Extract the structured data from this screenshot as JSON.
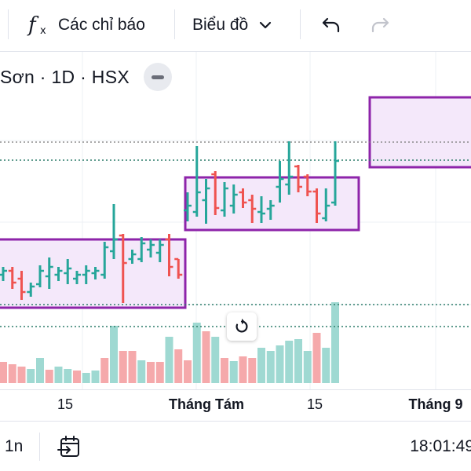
{
  "toolbar": {
    "indicators_label": "Các chỉ báo",
    "chart_type_label": "Biểu đồ"
  },
  "legend": {
    "symbol_text": "Sơn · 1D · HSX"
  },
  "colors": {
    "up": "#26a69a",
    "down": "#ef5350",
    "volume_up": "#9fd9d2",
    "volume_down": "#f5a9ab",
    "zone_border": "#8e24aa",
    "zone_fill": "#f4e8fa",
    "dotted_line": "#2e7d6b"
  },
  "time_axis": {
    "ticks": [
      {
        "label": "15",
        "bold": false
      },
      {
        "label": "Tháng Tám",
        "bold": true
      },
      {
        "label": "15",
        "bold": false
      },
      {
        "label": "Tháng 9",
        "bold": true
      }
    ]
  },
  "bottom_bar": {
    "range_label": "1n",
    "clock": "18:01:49"
  },
  "chart_data": {
    "type": "ohlc",
    "bars": [
      {
        "d": "up",
        "o": 350,
        "h": 340,
        "l": 358,
        "c": 345
      },
      {
        "d": "down",
        "o": 345,
        "h": 340,
        "l": 368,
        "c": 360
      },
      {
        "d": "down",
        "o": 355,
        "h": 345,
        "l": 382,
        "c": 372
      },
      {
        "d": "up",
        "o": 372,
        "h": 360,
        "l": 378,
        "c": 365
      },
      {
        "d": "up",
        "o": 362,
        "h": 338,
        "l": 366,
        "c": 345
      },
      {
        "d": "up",
        "o": 352,
        "h": 328,
        "l": 368,
        "c": 340
      },
      {
        "d": "up",
        "o": 350,
        "h": 340,
        "l": 358,
        "c": 345
      },
      {
        "d": "up",
        "o": 348,
        "h": 330,
        "l": 362,
        "c": 342
      },
      {
        "d": "up",
        "o": 355,
        "h": 345,
        "l": 362,
        "c": 350
      },
      {
        "d": "up",
        "o": 350,
        "h": 338,
        "l": 362,
        "c": 345
      },
      {
        "d": "up",
        "o": 348,
        "h": 340,
        "l": 356,
        "c": 345
      },
      {
        "d": "up",
        "o": 350,
        "h": 308,
        "l": 355,
        "c": 315
      },
      {
        "d": "up",
        "o": 320,
        "h": 260,
        "l": 330,
        "c": 305
      },
      {
        "d": "down",
        "o": 300,
        "h": 298,
        "l": 386,
        "c": 335
      },
      {
        "d": "up",
        "o": 330,
        "h": 318,
        "l": 336,
        "c": 324
      },
      {
        "d": "up",
        "o": 330,
        "h": 302,
        "l": 334,
        "c": 310
      },
      {
        "d": "up",
        "o": 318,
        "h": 305,
        "l": 328,
        "c": 312
      },
      {
        "d": "up",
        "o": 322,
        "h": 305,
        "l": 334,
        "c": 312
      },
      {
        "d": "down",
        "o": 305,
        "h": 298,
        "l": 352,
        "c": 340
      },
      {
        "d": "down",
        "o": 330,
        "h": 330,
        "l": 355,
        "c": 350
      },
      {
        "d": "up",
        "o": 268,
        "h": 245,
        "l": 282,
        "c": 262
      },
      {
        "d": "up",
        "o": 270,
        "h": 186,
        "l": 276,
        "c": 245
      },
      {
        "d": "up",
        "o": 255,
        "h": 228,
        "l": 285,
        "c": 240
      },
      {
        "d": "down",
        "o": 222,
        "h": 218,
        "l": 274,
        "c": 265
      },
      {
        "d": "up",
        "o": 268,
        "h": 232,
        "l": 276,
        "c": 240
      },
      {
        "d": "up",
        "o": 262,
        "h": 235,
        "l": 272,
        "c": 248
      },
      {
        "d": "down",
        "o": 245,
        "h": 240,
        "l": 265,
        "c": 258
      },
      {
        "d": "down",
        "o": 255,
        "h": 248,
        "l": 284,
        "c": 266
      },
      {
        "d": "up",
        "o": 270,
        "h": 250,
        "l": 284,
        "c": 272
      },
      {
        "d": "up",
        "o": 266,
        "h": 255,
        "l": 280,
        "c": 262
      },
      {
        "d": "up",
        "o": 238,
        "h": 205,
        "l": 258,
        "c": 228
      },
      {
        "d": "up",
        "o": 235,
        "h": 180,
        "l": 248,
        "c": 225
      },
      {
        "d": "down",
        "o": 212,
        "h": 210,
        "l": 245,
        "c": 238
      },
      {
        "d": "down",
        "o": 225,
        "h": 222,
        "l": 250,
        "c": 244
      },
      {
        "d": "down",
        "o": 244,
        "h": 240,
        "l": 284,
        "c": 272
      },
      {
        "d": "up",
        "o": 278,
        "h": 240,
        "l": 282,
        "c": 262
      },
      {
        "d": "up",
        "o": 258,
        "h": 180,
        "l": 262,
        "c": 205
      }
    ],
    "volumes": [
      {
        "d": "down",
        "v": 0.25
      },
      {
        "d": "down",
        "v": 0.22
      },
      {
        "d": "down",
        "v": 0.2
      },
      {
        "d": "up",
        "v": 0.17
      },
      {
        "d": "up",
        "v": 0.3
      },
      {
        "d": "down",
        "v": 0.16
      },
      {
        "d": "up",
        "v": 0.2
      },
      {
        "d": "up",
        "v": 0.17
      },
      {
        "d": "down",
        "v": 0.15
      },
      {
        "d": "up",
        "v": 0.12
      },
      {
        "d": "up",
        "v": 0.15
      },
      {
        "d": "down",
        "v": 0.3
      },
      {
        "d": "up",
        "v": 0.68
      },
      {
        "d": "down",
        "v": 0.38
      },
      {
        "d": "down",
        "v": 0.38
      },
      {
        "d": "up",
        "v": 0.27
      },
      {
        "d": "down",
        "v": 0.25
      },
      {
        "d": "down",
        "v": 0.25
      },
      {
        "d": "up",
        "v": 0.55
      },
      {
        "d": "down",
        "v": 0.4
      },
      {
        "d": "down",
        "v": 0.27
      },
      {
        "d": "up",
        "v": 0.72
      },
      {
        "d": "down",
        "v": 0.62
      },
      {
        "d": "up",
        "v": 0.55
      },
      {
        "d": "down",
        "v": 0.3
      },
      {
        "d": "up",
        "v": 0.26
      },
      {
        "d": "down",
        "v": 0.32
      },
      {
        "d": "down",
        "v": 0.3
      },
      {
        "d": "up",
        "v": 0.42
      },
      {
        "d": "up",
        "v": 0.38
      },
      {
        "d": "up",
        "v": 0.45
      },
      {
        "d": "up",
        "v": 0.5
      },
      {
        "d": "up",
        "v": 0.52
      },
      {
        "d": "up",
        "v": 0.38
      },
      {
        "d": "down",
        "v": 0.6
      },
      {
        "d": "up",
        "v": 0.42
      },
      {
        "d": "up",
        "v": 0.96
      }
    ]
  }
}
